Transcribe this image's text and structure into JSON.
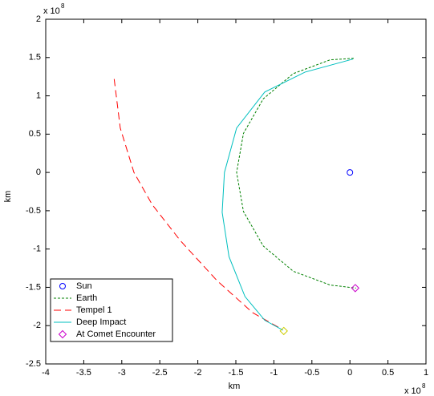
{
  "chart_data": {
    "type": "line",
    "xlabel": "km",
    "ylabel": "km",
    "x_multiplier": "x 10",
    "x_multiplier_exponent": "8",
    "y_multiplier": "x 10",
    "y_multiplier_exponent": "8",
    "xlim": [
      -4,
      1
    ],
    "xticks": [
      -4,
      -3.5,
      -3,
      -2.5,
      -2,
      -1.5,
      -1,
      -0.5,
      0,
      0.5,
      1
    ],
    "ylim": [
      -2.5,
      2
    ],
    "yticks": [
      -2.5,
      -2,
      -1.5,
      -1,
      -0.5,
      0,
      0.5,
      1,
      1.5,
      2
    ],
    "legend": "lower left",
    "series": [
      {
        "name": "Sun",
        "color": "#0000ff",
        "style": "marker",
        "marker": "circle",
        "x": [
          0
        ],
        "y": [
          0
        ]
      },
      {
        "name": "Earth",
        "color": "#008000",
        "style": "dotted",
        "marker": "none",
        "x": [
          0.05,
          -0.26,
          -0.745,
          -1.14,
          -1.4,
          -1.49,
          -1.4,
          -1.14,
          -0.745,
          -0.26,
          0.08
        ],
        "y": [
          1.49,
          1.47,
          1.29,
          0.96,
          0.51,
          0,
          -0.51,
          -0.96,
          -1.29,
          -1.47,
          -1.51
        ]
      },
      {
        "name": "Tempel 1",
        "color": "#ff0000",
        "style": "dashed",
        "marker": "none",
        "x": [
          -3.1,
          -3.02,
          -2.84,
          -2.6,
          -2.23,
          -1.75,
          -1.28,
          -0.89
        ],
        "y": [
          1.22,
          0.58,
          0,
          -0.42,
          -0.89,
          -1.41,
          -1.83,
          -2.05
        ]
      },
      {
        "name": "Deep Impact",
        "color": "#00bfbf",
        "style": "solid",
        "marker": "none",
        "x": [
          0.04,
          -0.59,
          -1.12,
          -1.49,
          -1.65,
          -1.68,
          -1.59,
          -1.38,
          -1.12,
          -0.88
        ],
        "y": [
          1.48,
          1.31,
          1.05,
          0.58,
          0,
          -0.52,
          -1.1,
          -1.62,
          -1.93,
          -2.06
        ]
      },
      {
        "name": "At Comet Encounter",
        "color": "#cc00cc",
        "style": "marker",
        "marker": "diamond",
        "marker_colors": [
          "#cc00cc",
          "#cccc00"
        ],
        "x": [
          0.07,
          -0.87
        ],
        "y": [
          -1.51,
          -2.07
        ]
      }
    ]
  }
}
